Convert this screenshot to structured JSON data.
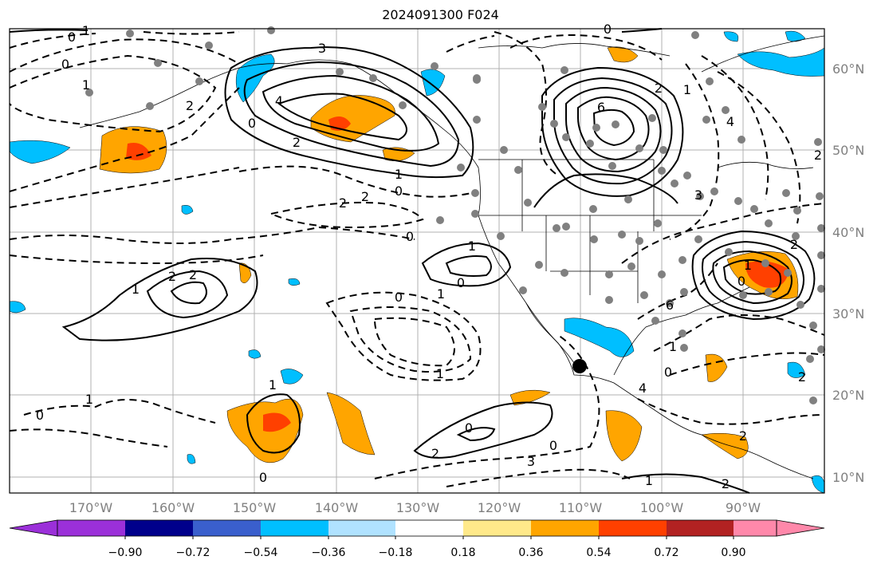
{
  "map": {
    "title": "2024091300 F024",
    "lon_ticks": [
      "170°W",
      "160°W",
      "150°W",
      "140°W",
      "130°W",
      "120°W",
      "110°W",
      "100°W",
      "90°W"
    ],
    "lat_ticks": [
      "60°N",
      "50°N",
      "40°N",
      "30°N",
      "20°N",
      "10°N"
    ],
    "colorbar": {
      "tick_labels": [
        "−0.90",
        "−0.72",
        "−0.54",
        "−0.36",
        "−0.18",
        "0.18",
        "0.36",
        "0.54",
        "0.72",
        "0.90"
      ],
      "colors": [
        "#9b30d9",
        "#00008b",
        "#3a5fcd",
        "#00bfff",
        "#b0e2ff",
        "#ffffff",
        "#ffe98a",
        "#ffa500",
        "#ff4000",
        "#b22222",
        "#ff88aa"
      ]
    },
    "contour_labels": [
      "0",
      "1",
      "3",
      "4",
      "2",
      "6",
      "2",
      "1",
      "0",
      "1",
      "2",
      "0",
      "1",
      "0",
      "2",
      "2",
      "0",
      "1",
      "0",
      "2",
      "2",
      "1",
      "1",
      "0",
      "1",
      "0",
      "2",
      "3",
      "0",
      "4",
      "0",
      "1"
    ],
    "colors": {
      "warm": "#ffa500",
      "hot": "#ff4000",
      "cool": "#00bfff",
      "station": "#808080",
      "marker": "#000000"
    }
  }
}
